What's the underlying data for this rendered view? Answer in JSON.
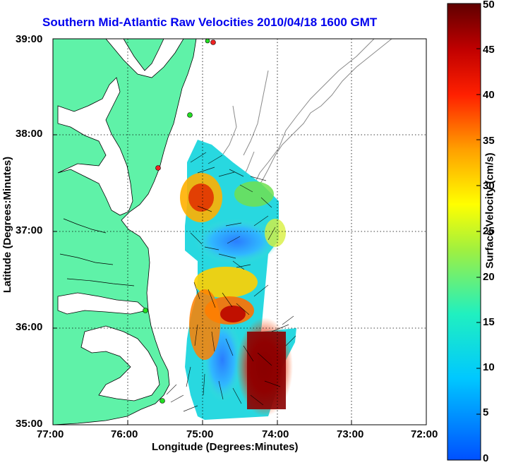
{
  "title": "Southern Mid-Atlantic Raw Velocities 2010/04/18 1600 GMT",
  "axes": {
    "xlabel": "Longitude (Degrees:Minutes)",
    "ylabel": "Latitude (Degrees:Minutes)",
    "x_ticks": [
      "77:00",
      "76:00",
      "75:00",
      "74:00",
      "73:00",
      "72:00"
    ],
    "y_ticks": [
      "39:00",
      "38:00",
      "37:00",
      "36:00",
      "35:00"
    ]
  },
  "colorbar": {
    "label": "Surface Velocity (cm/s)",
    "ticks": [
      "50",
      "45",
      "40",
      "35",
      "30",
      "25",
      "20",
      "15",
      "10",
      "5",
      "0"
    ],
    "range": [
      0,
      50
    ]
  },
  "colors": {
    "land": "#5ff2a8",
    "title": "#0000ee",
    "bathymetry": "#8a8a8a"
  }
}
